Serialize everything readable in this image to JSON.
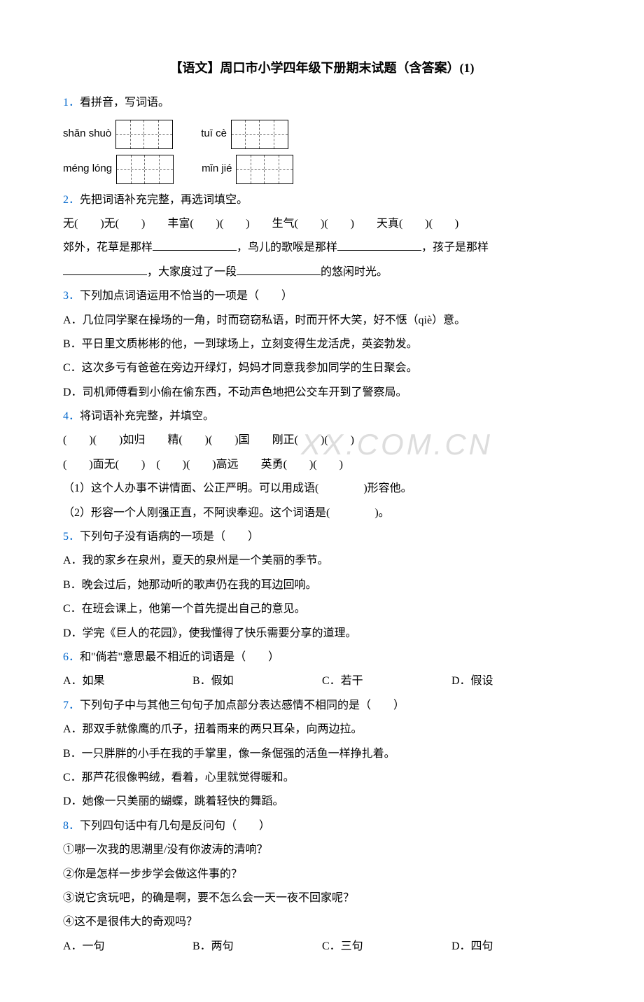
{
  "title": "【语文】周口市小学四年级下册期末试题（含答案）(1)",
  "watermark": "XX.COM.CN",
  "q1": {
    "num": "1．",
    "text": "看拼音，写词语。",
    "pinyin1a": "shǎn shuò",
    "pinyin1b": "tuī cè",
    "pinyin2a": "méng  lóng",
    "pinyin2b": "mǐn jié"
  },
  "q2": {
    "num": "2．",
    "text": "先把词语补充完整，再选词填空。",
    "line1": "无(　　)无(　　)　　丰富(　　)(　　)　　生气(　　)(　　)　　天真(　　)(　　)",
    "line2a": "郊外，花草是那样",
    "line2b": "，鸟儿的歌喉是那样",
    "line2c": "，孩子是那样",
    "line3a": "，大家度过了一段",
    "line3b": "的悠闲时光。"
  },
  "q3": {
    "num": "3．",
    "text": "下列加点词语运用不恰当的一项是（　　）",
    "optA": "A．几位同学聚在操场的一角，时而窃窃私语，时而开怀大笑，好不惬（qiè）意。",
    "optB": "B．平日里文质彬彬的他，一到球场上，立刻变得生龙活虎，英姿勃发。",
    "optC": "C．这次多亏有爸爸在旁边开绿灯，妈妈才同意我参加同学的生日聚会。",
    "optD": "D．司机师傅看到小偷在偷东西，不动声色地把公交车开到了警察局。"
  },
  "q4": {
    "num": "4．",
    "text": "将词语补充完整，并填空。",
    "line1": "(　　)(　　)如归　　精(　　)(　　)国　　刚正(　　)(　　)",
    "line2": "(　　)面无(　　)　(　　)(　　)高远　　英勇(　　)(　　)",
    "line3": "（1）这个人办事不讲情面、公正严明。可以用成语(　　　　)形容他。",
    "line4": "（2）形容一个人刚强正直，不阿谀奉迎。这个词语是(　　　　)。"
  },
  "q5": {
    "num": "5．",
    "text": "下列句子没有语病的一项是（　　）",
    "optA": "A．我的家乡在泉州，夏天的泉州是一个美丽的季节。",
    "optB": "B．晚会过后，她那动听的歌声仍在我的耳边回响。",
    "optC": "C．在班会课上，他第一个首先提出自己的意见。",
    "optD": "D．学完《巨人的花园》，使我懂得了快乐需要分享的道理。"
  },
  "q6": {
    "num": "6．",
    "text": "和\"倘若\"意思最不相近的词语是（　　）",
    "optA": "A．如果",
    "optB": "B．假如",
    "optC": "C．若干",
    "optD": "D．假设"
  },
  "q7": {
    "num": "7．",
    "text": "下列句子中与其他三句句子加点部分表达感情不相同的是（　　）",
    "optA": "A．那双手就像鹰的爪子，扭着雨来的两只耳朵，向两边拉。",
    "optB": "B．一只胖胖的小手在我的手掌里，像一条倔强的活鱼一样挣扎着。",
    "optC": "C．那芦花很像鸭绒，看着，心里就觉得暖和。",
    "optD": "D．她像一只美丽的蝴蝶，跳着轻快的舞蹈。"
  },
  "q8": {
    "num": "8．",
    "text": "下列四句话中有几句是反问句（　　）",
    "line1": "①哪一次我的思潮里/没有你波涛的清响？",
    "line2": "②你是怎样一步步学会做这件事的？",
    "line3": "③说它贪玩吧，的确是啊，要不怎么会一天一夜不回家呢？",
    "line4": "④这不是很伟大的奇观吗？",
    "optA": "A．一句",
    "optB": "B．两句",
    "optC": "C．三句",
    "optD": "D．四句"
  }
}
